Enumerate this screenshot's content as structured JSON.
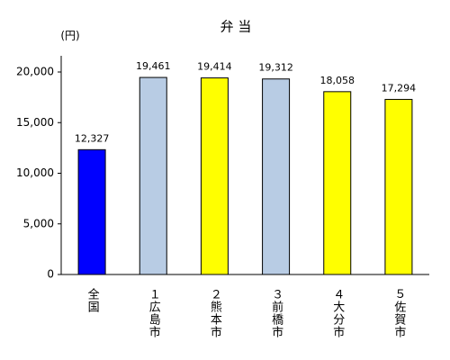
{
  "chart_data": {
    "type": "bar",
    "title": "弁 当",
    "y_unit": "(円)",
    "categories": [
      "全国",
      "１広島市",
      "２熊本市",
      "３前橋市",
      "４大分市",
      "５佐賀市"
    ],
    "values": [
      12327,
      19461,
      19414,
      19312,
      18058,
      17294
    ],
    "value_labels": [
      "12,327",
      "19,461",
      "19,414",
      "19,312",
      "18,058",
      "17,294"
    ],
    "colors": [
      "#0000ff",
      "#b8cce4",
      "#ffff00",
      "#b8cce4",
      "#ffff00",
      "#ffff00"
    ],
    "ylim": [
      0,
      20000
    ],
    "yticks": [
      0,
      {
        "value": 5000,
        "label": "5,000"
      },
      {
        "value": 10000,
        "label": "10,000"
      },
      {
        "value": 15000,
        "label": "15,000"
      },
      {
        "value": 20000,
        "label": "20,000"
      }
    ],
    "grid": false
  }
}
